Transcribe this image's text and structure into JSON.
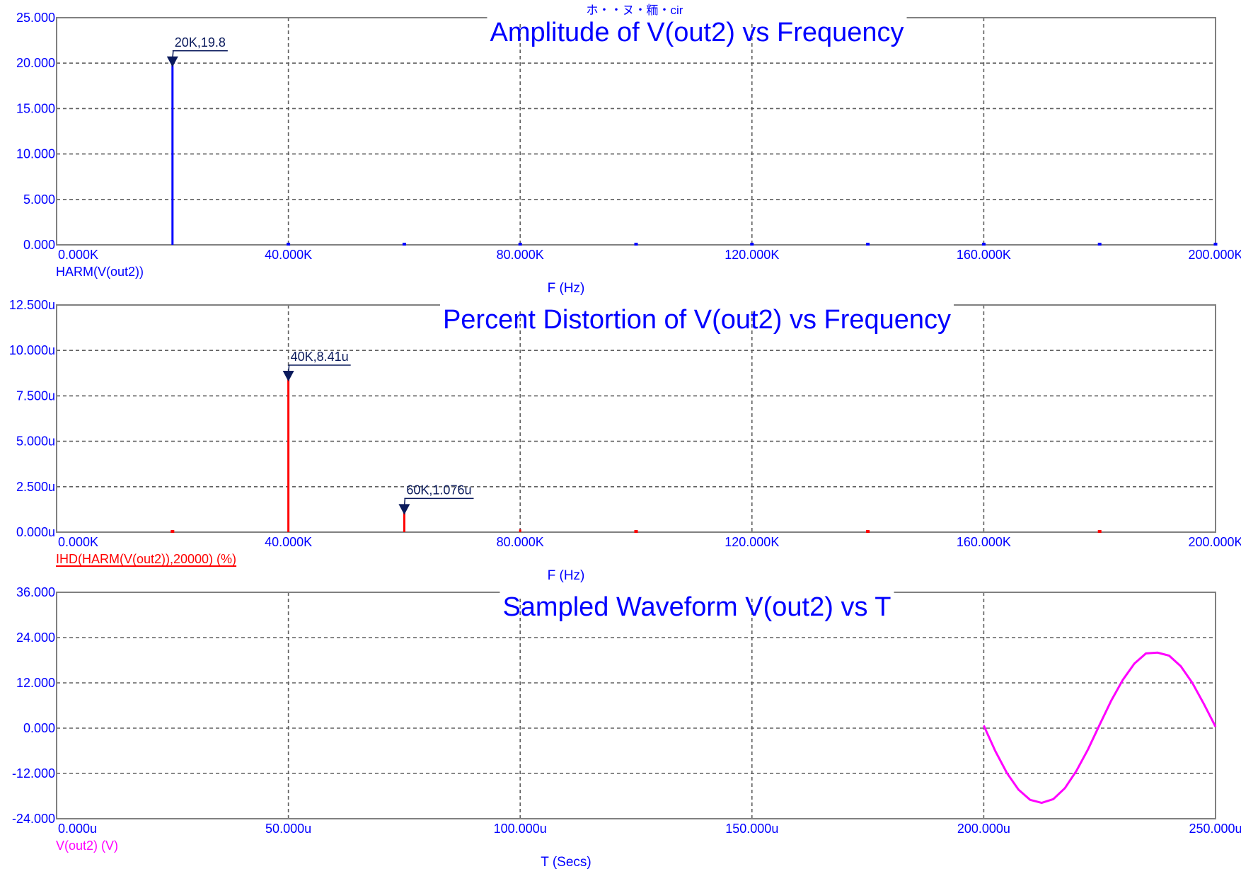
{
  "file_title": "ホ・・ヌ・粫・cir",
  "colors": {
    "axis_text": "#0000ff",
    "title": "#0000ff",
    "frame": "#808080",
    "grid": "#606060",
    "marker": "#0a1a5c",
    "harm": "#0000ff",
    "ihd": "#ff0000",
    "wave": "#ff00ff"
  },
  "chart_data": [
    {
      "type": "bar",
      "title": "Amplitude of V(out2) vs Frequency",
      "xlabel": "F (Hz)",
      "trace_label": "HARM(V(out2))",
      "trace_underline": false,
      "color": "#0000ff",
      "xlim": [
        0,
        200000
      ],
      "ylim": [
        0,
        25
      ],
      "xticks": [
        0,
        40000,
        80000,
        120000,
        160000,
        200000
      ],
      "xtick_labels": [
        "0.000K",
        "40.000K",
        "80.000K",
        "120.000K",
        "160.000K",
        "200.000K"
      ],
      "yticks": [
        0,
        5,
        10,
        15,
        20,
        25
      ],
      "ytick_labels": [
        "0.000",
        "5.000",
        "10.000",
        "15.000",
        "20.000",
        "25.000"
      ],
      "series": [
        {
          "x": [
            20000,
            40000,
            60000,
            80000,
            100000,
            120000,
            140000,
            160000,
            180000,
            200000
          ],
          "values": [
            19.8,
            0,
            0,
            0,
            0,
            0,
            0,
            0,
            0,
            0
          ]
        }
      ],
      "annotations": [
        {
          "x": 20000,
          "y": 19.8,
          "label": "20K,19.8"
        }
      ]
    },
    {
      "type": "bar",
      "title": "Percent Distortion of V(out2) vs Frequency",
      "xlabel": "F (Hz)",
      "trace_label": "IHD(HARM(V(out2)),20000) (%)",
      "trace_underline": true,
      "color": "#ff0000",
      "xlim": [
        0,
        200000
      ],
      "ylim": [
        0,
        12.5
      ],
      "xticks": [
        0,
        40000,
        80000,
        120000,
        160000,
        200000
      ],
      "xtick_labels": [
        "0.000K",
        "40.000K",
        "80.000K",
        "120.000K",
        "160.000K",
        "200.000K"
      ],
      "yticks": [
        0,
        2.5,
        5,
        7.5,
        10,
        12.5
      ],
      "ytick_labels": [
        "0.000u",
        "2.500u",
        "5.000u",
        "7.500u",
        "10.000u",
        "12.500u"
      ],
      "series": [
        {
          "x": [
            20000,
            40000,
            60000,
            80000,
            100000,
            140000,
            180000
          ],
          "values": [
            0.05,
            8.41,
            1.076,
            0.15,
            0.1,
            0.05,
            0.05
          ]
        }
      ],
      "annotations": [
        {
          "x": 40000,
          "y": 8.41,
          "label": "40K,8.41u"
        },
        {
          "x": 60000,
          "y": 1.076,
          "label": "60K,1.076u"
        }
      ]
    },
    {
      "type": "line",
      "title": "Sampled Waveform  V(out2) vs T",
      "xlabel": "T (Secs)",
      "trace_label": "V(out2) (V)",
      "trace_underline": false,
      "color": "#ff00ff",
      "xlim": [
        0,
        250
      ],
      "ylim": [
        -24,
        36
      ],
      "xticks": [
        0,
        50,
        100,
        150,
        200,
        250
      ],
      "xtick_labels": [
        "0.000u",
        "50.000u",
        "100.000u",
        "150.000u",
        "200.000u",
        "250.000u"
      ],
      "yticks": [
        -24,
        -12,
        0,
        12,
        24,
        36
      ],
      "ytick_labels": [
        "-24.000",
        "-12.000",
        "0.000",
        "12.000",
        "24.000",
        "36.000"
      ],
      "series": [
        {
          "x": [
            200,
            202.5,
            205,
            207.5,
            210,
            212.5,
            215,
            217.5,
            220,
            222.5,
            225,
            227.5,
            230,
            232.5,
            235,
            237.5,
            240,
            242.5,
            245,
            247.5,
            250
          ],
          "values": [
            0.7,
            -6.1,
            -11.9,
            -16.3,
            -19.0,
            -19.8,
            -18.8,
            -15.9,
            -11.3,
            -5.6,
            0.9,
            7.3,
            12.8,
            17.1,
            19.8,
            20.0,
            19.2,
            16.4,
            12.0,
            6.4,
            0.4
          ]
        }
      ],
      "annotations": []
    }
  ]
}
